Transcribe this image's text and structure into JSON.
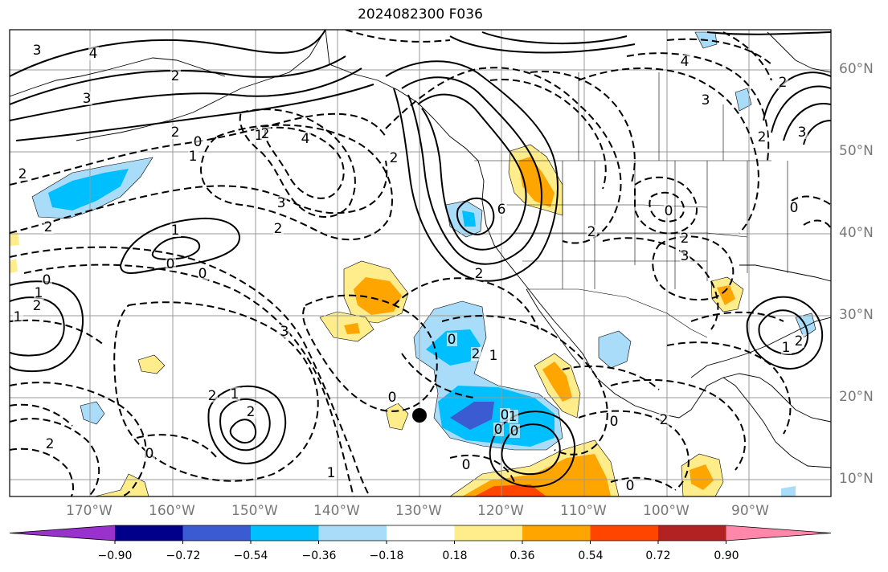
{
  "title": "2024082300 F036",
  "latitude_labels": [
    "60°N",
    "50°N",
    "40°N",
    "30°N",
    "20°N",
    "10°N"
  ],
  "longitude_labels": [
    "170°W",
    "160°W",
    "150°W",
    "140°W",
    "130°W",
    "120°W",
    "110°W",
    "100°W",
    "90°W"
  ],
  "colorbar": {
    "colors": [
      "#9932cc",
      "#00008b",
      "#3a5bd1",
      "#00bfff",
      "#a8dcf8",
      "#ffffff",
      "#ffec8b",
      "#ffa500",
      "#ff4500",
      "#b22222",
      "#ff88aa"
    ],
    "tick_labels": [
      "−0.90",
      "−0.72",
      "−0.54",
      "−0.36",
      "−0.18",
      "0.18",
      "0.36",
      "0.54",
      "0.72",
      "0.90"
    ]
  },
  "contour_labels": [
    "3",
    "4",
    "2",
    "3",
    "2",
    "1",
    "0",
    "1",
    "2",
    "4",
    "2",
    "2",
    "3",
    "2",
    "1",
    "0",
    "0",
    "1",
    "2",
    "1",
    "0",
    "2",
    "2",
    "0",
    "2",
    "1",
    "0",
    "0",
    "1",
    "0",
    "0",
    "0",
    "1",
    "3",
    "2",
    "1",
    "2",
    "6",
    "0",
    "2",
    "2",
    "3",
    "2",
    "1",
    "0",
    "2",
    "3",
    "2",
    "0",
    "2",
    "0",
    "0",
    "2",
    "3",
    "4"
  ]
}
